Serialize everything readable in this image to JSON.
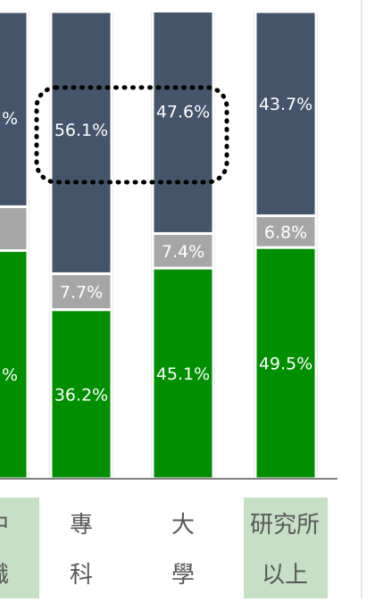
{
  "chart_data": {
    "type": "bar",
    "stacked": true,
    "percent": true,
    "categories": [
      {
        "line1": "中",
        "line2": "職",
        "highlight": true
      },
      {
        "line1": "專",
        "line2": "科",
        "highlight": false
      },
      {
        "line1": "大",
        "line2": "學",
        "highlight": false
      },
      {
        "line1": "研究所",
        "line2": "以上",
        "highlight": true
      }
    ],
    "series": [
      {
        "color": "#008f00",
        "values": [
          null,
          36.2,
          45.1,
          49.5
        ]
      },
      {
        "color": "#a6a6a6",
        "values": [
          null,
          7.7,
          7.4,
          6.8
        ]
      },
      {
        "color": "#44546a",
        "values": [
          null,
          56.1,
          47.6,
          43.7
        ]
      }
    ],
    "labels": [
      [
        "%",
        "36.2%",
        "45.1%",
        "49.5%"
      ],
      [
        "",
        "7.7%",
        "7.4%",
        "6.8%"
      ],
      [
        "%",
        "56.1%",
        "47.6%",
        "43.7%"
      ]
    ],
    "ylim": [
      0,
      100
    ],
    "grid": false,
    "annotation": {
      "type": "dotted-rounded-rect",
      "around_categories": [
        1,
        2
      ],
      "series": 2
    },
    "colors": {
      "highlight_bg": "#c5e0c5",
      "bar_outline": "#d9d9d9",
      "axis": "#7f7f7f",
      "label_text": "#ffffff"
    }
  }
}
